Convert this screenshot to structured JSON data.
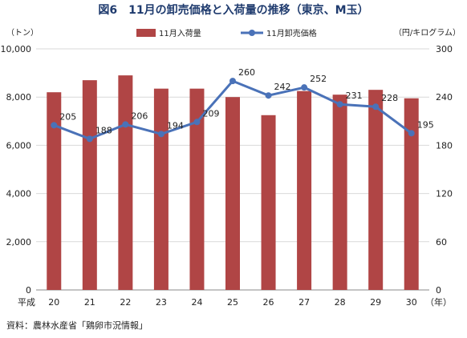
{
  "chart_data": {
    "type": "bar",
    "title": "図6　11月の卸売価格と入荷量の推移（東京、M玉）",
    "y_left_unit": "（トン）",
    "y_right_unit": "（円/キログラム）",
    "x_prefix": "平成",
    "x_unit": "（年）",
    "categories": [
      "20",
      "21",
      "22",
      "23",
      "24",
      "25",
      "26",
      "27",
      "28",
      "29",
      "30"
    ],
    "y_left": {
      "min": 0,
      "max": 10000,
      "ticks": [
        "0",
        "2,000",
        "4,000",
        "6,000",
        "8,000",
        "10,000"
      ]
    },
    "y_right": {
      "min": 0,
      "max": 300,
      "ticks": [
        "0",
        "60",
        "120",
        "180",
        "240",
        "300"
      ]
    },
    "series": [
      {
        "name": "11月入荷量",
        "type": "bar",
        "axis": "left",
        "color": "#b04545",
        "values": [
          8200,
          8700,
          8900,
          8350,
          8350,
          8000,
          7250,
          8250,
          8100,
          8300,
          7950
        ]
      },
      {
        "name": "11月卸売価格",
        "type": "line",
        "axis": "right",
        "color": "#4a72b8",
        "values": [
          205,
          188,
          206,
          194,
          209,
          260,
          242,
          252,
          231,
          228,
          195
        ],
        "labels": [
          "205",
          "188",
          "206",
          "194",
          "209",
          "260",
          "242",
          "252",
          "231",
          "228",
          "195"
        ]
      }
    ],
    "legend": "top-center",
    "grid": true,
    "source": "資料：農林水産省「鶏卵市況情報」"
  }
}
